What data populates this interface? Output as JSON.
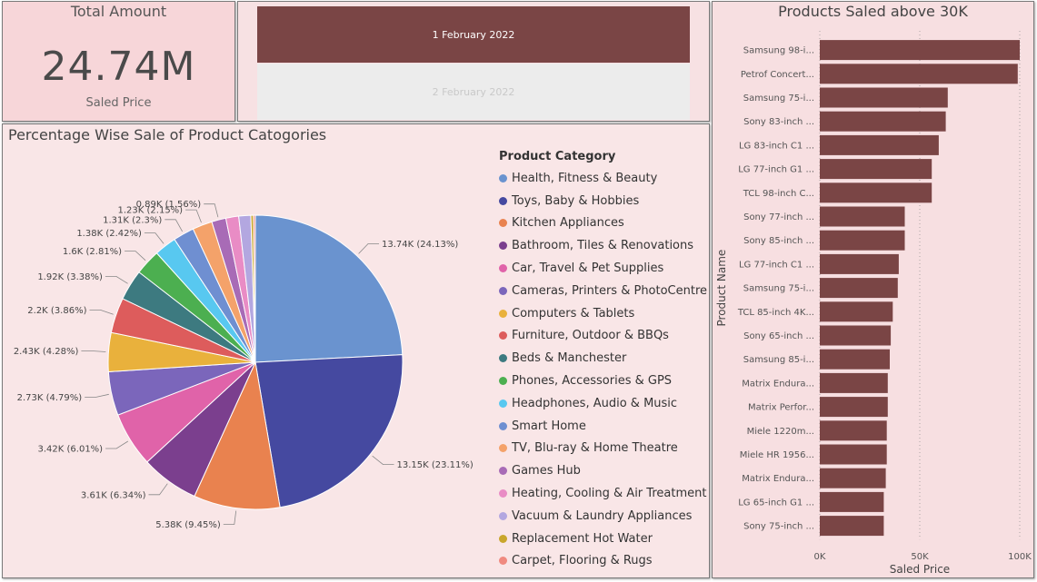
{
  "card": {
    "title": "Total Amount",
    "value": "24.74M",
    "label": "Saled Price"
  },
  "slicer": {
    "items": [
      "1 February 2022",
      "2 February 2022"
    ]
  },
  "chart_data": [
    {
      "type": "pie",
      "title": "Percentage Wise Sale of Product Catogories",
      "legend_title": "Product Category",
      "legend_placement": "right",
      "categories": [
        "Health, Fitness & Beauty",
        "Toys, Baby & Hobbies",
        "Kitchen Appliances",
        "Bathroom, Tiles & Renovations",
        "Car, Travel & Pet Supplies",
        "Cameras, Printers & PhotoCentre",
        "Computers & Tablets",
        "Furniture, Outdoor & BBQs",
        "Beds & Manchester",
        "Phones, Accessories & GPS",
        "Headphones, Audio & Music",
        "Smart Home",
        "TV, Blu-ray & Home Theatre",
        "Games Hub",
        "Heating, Cooling & Air Treatment",
        "Vacuum & Laundry Appliances",
        "Replacement Hot Water",
        "Carpet, Flooring & Rugs"
      ],
      "values": [
        13740,
        13150,
        5380,
        3610,
        3420,
        2730,
        2430,
        2200,
        1920,
        1600,
        1380,
        1310,
        1230,
        890,
        800,
        750,
        160,
        120
      ],
      "data_labels": [
        "13.74K (24.13%)",
        "13.15K (23.11%)",
        "5.38K (9.45%)",
        "3.61K (6.34%)",
        "3.42K (6.01%)",
        "2.73K (4.79%)",
        "2.43K (4.28%)",
        "2.2K (3.86%)",
        "1.92K (3.38%)",
        "1.6K (2.81%)",
        "1.38K (2.42%)",
        "1.31K (2.3%)",
        "1.23K (2.15%)",
        "0.89K (1.56%)",
        "",
        "",
        "",
        ""
      ],
      "colors": [
        "#6a93cf",
        "#4549a0",
        "#e9824f",
        "#7b3f8e",
        "#e063a9",
        "#7b66bb",
        "#e9b13c",
        "#dd5c5c",
        "#3d7a80",
        "#4caf50",
        "#58c8f0",
        "#6f8fd1",
        "#f4a26a",
        "#a86bb6",
        "#e98cc5",
        "#b3a7e0",
        "#c9a62c",
        "#f08a80"
      ]
    },
    {
      "type": "bar",
      "orientation": "horizontal",
      "title": "Products Saled above 30K",
      "xlabel": "Saled Price",
      "ylabel": "Product Name",
      "xlim": [
        0,
        100000
      ],
      "xticks": [
        "0K",
        "50K",
        "100K"
      ],
      "grid": true,
      "color": "#7a4545",
      "categories": [
        "Samsung 98-i...",
        "Petrof Concert...",
        "Samsung 75-i...",
        "Sony 83-inch ...",
        "LG 83-inch C1 ...",
        "LG 77-inch G1 ...",
        "TCL 98-inch C...",
        "Sony 77-inch ...",
        "Sony 85-inch ...",
        "LG 77-inch C1 ...",
        "Samsung 75-i...",
        "TCL 85-inch 4K...",
        "Sony 65-inch ...",
        "Samsung 85-i...",
        "Matrix Endura...",
        "Matrix Perfor...",
        "Miele 1220m...",
        "Miele HR 1956...",
        "Matrix Endura...",
        "LG 65-inch G1 ...",
        "Sony 75-inch ..."
      ],
      "values": [
        100000,
        99000,
        64000,
        63000,
        59500,
        56000,
        56000,
        42500,
        42500,
        39500,
        39000,
        36500,
        35500,
        35000,
        34000,
        34000,
        33500,
        33500,
        33000,
        32000,
        32000
      ]
    }
  ]
}
